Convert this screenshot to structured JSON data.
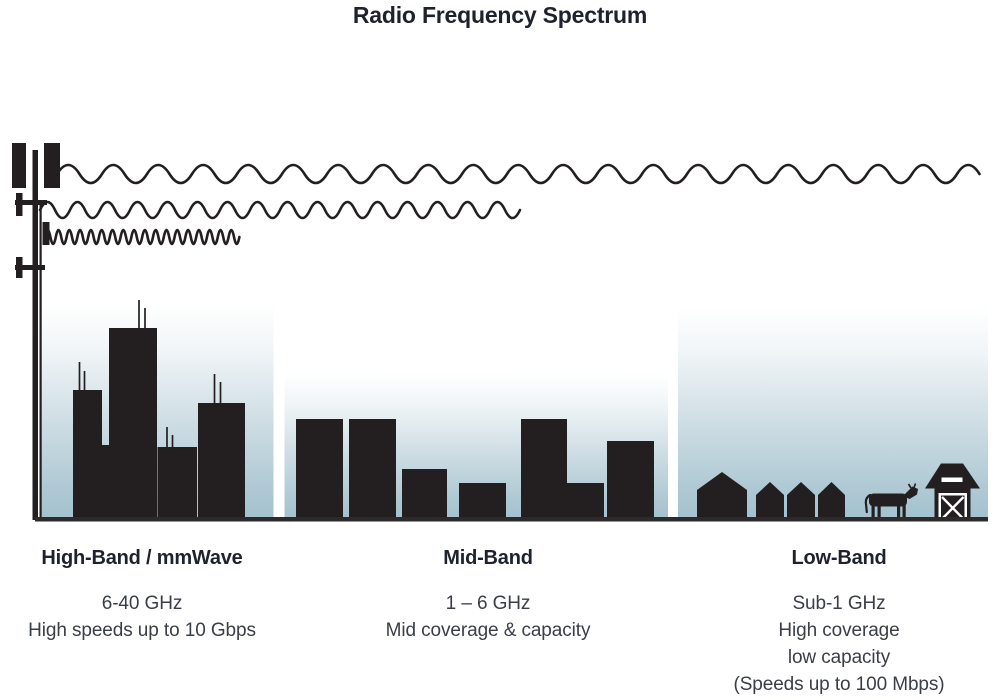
{
  "title": "Radio Frequency Spectrum",
  "bands": [
    {
      "name": "High-Band / mmWave",
      "freq": "6-40 GHz",
      "details": [
        "High speeds up to 10 Gbps"
      ]
    },
    {
      "name": "Mid-Band",
      "freq": "1 – 6 GHz",
      "details": [
        "Mid coverage & capacity"
      ]
    },
    {
      "name": "Low-Band",
      "freq": "Sub-1 GHz",
      "details": [
        "High coverage",
        "low capacity",
        "(Speeds up to 100 Mbps)"
      ]
    }
  ],
  "icons": {
    "transmitter": "cell-tower-icon",
    "low_band_wave": "long-wave-icon",
    "mid_band_wave": "medium-wave-icon",
    "high_band_wave": "short-wave-icon",
    "high_band_scene": "dense-city-skyline",
    "mid_band_scene": "city-skyline",
    "low_band_scene": "farm-houses-cow-barn"
  },
  "colors": {
    "silhouette": "#231f20",
    "sky_top": "#ffffff",
    "sky_bottom": "#a2c1ce",
    "ground": "#2c2a2b",
    "heading_text": "#1e222c",
    "body_text": "#3a3e47"
  }
}
